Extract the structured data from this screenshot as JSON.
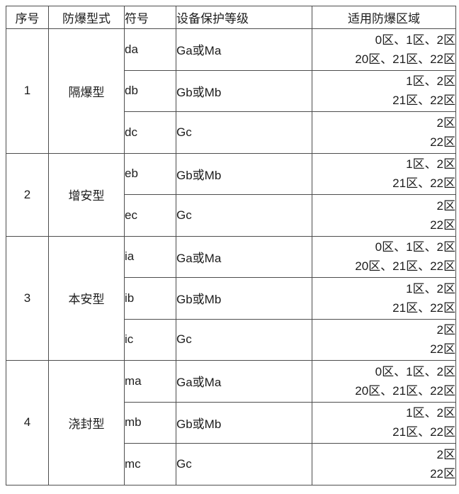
{
  "table": {
    "headers": [
      "序号",
      "防爆型式",
      "符号",
      "设备保护等级",
      "适用防爆区域"
    ],
    "groups": [
      {
        "index": "1",
        "type": "隔爆型",
        "rows": [
          {
            "symbol": "da",
            "epl": "Ga或Ma",
            "zones": [
              "0区、1区、2区",
              "20区、21区、22区"
            ]
          },
          {
            "symbol": "db",
            "epl": "Gb或Mb",
            "zones": [
              "1区、2区",
              "21区、22区"
            ]
          },
          {
            "symbol": "dc",
            "epl": "Gc",
            "zones": [
              "2区",
              "22区"
            ]
          }
        ]
      },
      {
        "index": "2",
        "type": "增安型",
        "rows": [
          {
            "symbol": "eb",
            "epl": "Gb或Mb",
            "zones": [
              "1区、2区",
              "21区、22区"
            ]
          },
          {
            "symbol": "ec",
            "epl": "Gc",
            "zones": [
              "2区",
              "22区"
            ]
          }
        ]
      },
      {
        "index": "3",
        "type": "本安型",
        "rows": [
          {
            "symbol": "ia",
            "epl": "Ga或Ma",
            "zones": [
              "0区、1区、2区",
              "20区、21区、22区"
            ]
          },
          {
            "symbol": "ib",
            "epl": "Gb或Mb",
            "zones": [
              "1区、2区",
              "21区、22区"
            ]
          },
          {
            "symbol": "ic",
            "epl": "Gc",
            "zones": [
              "2区",
              "22区"
            ]
          }
        ]
      },
      {
        "index": "4",
        "type": "浇封型",
        "rows": [
          {
            "symbol": "ma",
            "epl": "Ga或Ma",
            "zones": [
              "0区、1区、2区",
              "20区、21区、22区"
            ]
          },
          {
            "symbol": "mb",
            "epl": "Gb或Mb",
            "zones": [
              "1区、2区",
              "21区、22区"
            ]
          },
          {
            "symbol": "mc",
            "epl": "Gc",
            "zones": [
              "2区",
              "22区"
            ]
          }
        ]
      }
    ],
    "colors": {
      "border": "#4d4d4d",
      "text": "#1c1c1c",
      "background": "#ffffff"
    }
  }
}
